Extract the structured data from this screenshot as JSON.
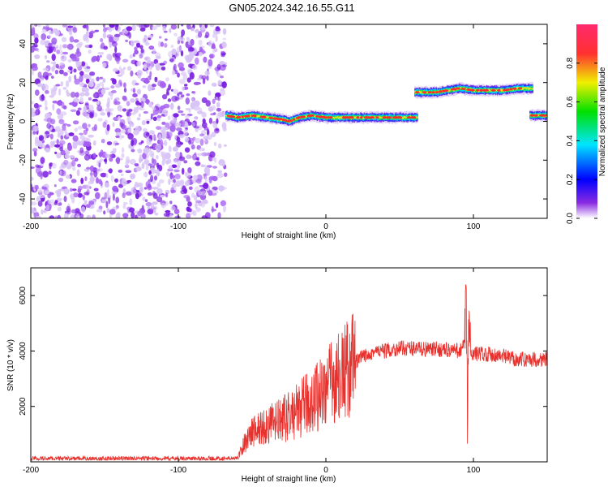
{
  "figure_title": "GN05.2024.342.16.55.G11",
  "colors": {
    "noise": "#8a2be2",
    "snr_line": "#e8302c",
    "axis": "#000000"
  },
  "chart_data": [
    {
      "type": "heatmap",
      "title": "GN05.2024.342.16.55.G11",
      "xlabel": "Height of straight line (km)",
      "ylabel": "Frequency (Hz)",
      "xlim": [
        -200,
        150
      ],
      "ylim": [
        -50,
        50
      ],
      "xticks": [
        -200,
        -100,
        0,
        100
      ],
      "yticks": [
        -40,
        -20,
        0,
        20,
        40
      ],
      "colorbar": {
        "label": "Normalized spectral amplitude",
        "ticks": [
          "0.0",
          "0.2",
          "0.4",
          "0.6",
          "0.8"
        ],
        "range": [
          0,
          1
        ],
        "colormap": "rainbow (purple-blue-cyan-green-yellow-red)"
      },
      "noise_region": {
        "x_from": -200,
        "x_to": -68,
        "description_color": "purple"
      },
      "ridge_segments": [
        {
          "x_from": -68,
          "x_to": 62,
          "freq": [
            {
              "x": -68,
              "f": 3
            },
            {
              "x": -60,
              "f": 2
            },
            {
              "x": -50,
              "f": 3
            },
            {
              "x": -40,
              "f": 2
            },
            {
              "x": -30,
              "f": 1
            },
            {
              "x": -25,
              "f": 0
            },
            {
              "x": -18,
              "f": 2
            },
            {
              "x": -10,
              "f": 3
            },
            {
              "x": 0,
              "f": 2
            },
            {
              "x": 10,
              "f": 2
            },
            {
              "x": 20,
              "f": 2
            },
            {
              "x": 40,
              "f": 2
            },
            {
              "x": 62,
              "f": 2
            }
          ]
        },
        {
          "x_from": 60,
          "x_to": 140,
          "freq": [
            {
              "x": 60,
              "f": 15
            },
            {
              "x": 75,
              "f": 15
            },
            {
              "x": 90,
              "f": 17
            },
            {
              "x": 100,
              "f": 16
            },
            {
              "x": 110,
              "f": 16
            },
            {
              "x": 120,
              "f": 16
            },
            {
              "x": 130,
              "f": 17
            },
            {
              "x": 140,
              "f": 17
            }
          ]
        },
        {
          "x_from": 138,
          "x_to": 150,
          "freq": [
            {
              "x": 138,
              "f": 3
            },
            {
              "x": 150,
              "f": 3
            }
          ]
        }
      ]
    },
    {
      "type": "line",
      "xlabel": "Height of straight line (km)",
      "ylabel": "SNR (10 * v/v)",
      "xlim": [
        -200,
        150
      ],
      "ylim": [
        0,
        7000
      ],
      "xticks": [
        -200,
        -100,
        0,
        100
      ],
      "yticks": [
        2000,
        4000,
        6000
      ],
      "series": [
        {
          "x": [
            -200,
            -150,
            -100,
            -60,
            -55,
            -50,
            -40,
            -30,
            -20,
            -10,
            0,
            10,
            20,
            30,
            40,
            50,
            60,
            70,
            80,
            90,
            94,
            95,
            96,
            97,
            98,
            100,
            110,
            120,
            130,
            140,
            150
          ],
          "y": [
            120,
            120,
            120,
            120,
            700,
            1100,
            1300,
            1500,
            1800,
            2200,
            2700,
            3100,
            3600,
            3950,
            4000,
            4100,
            4100,
            4050,
            4050,
            4000,
            4200,
            6200,
            1200,
            5500,
            3800,
            3900,
            3900,
            3800,
            3700,
            3700,
            3700
          ]
        }
      ]
    }
  ]
}
